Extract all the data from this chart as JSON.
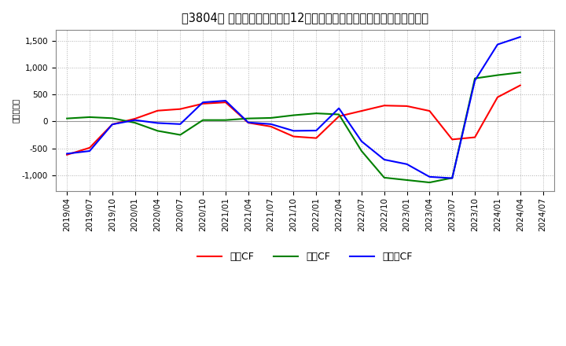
{
  "title": "［3804］ キャッシュフローの12か月移動合計の対前年同期増減額の推移",
  "ylabel": "（百万円）",
  "xlabels": [
    "2019/04",
    "2019/07",
    "2019/10",
    "2020/01",
    "2020/04",
    "2020/07",
    "2020/10",
    "2021/01",
    "2021/04",
    "2021/07",
    "2021/10",
    "2022/01",
    "2022/04",
    "2022/07",
    "2022/10",
    "2023/01",
    "2023/04",
    "2023/07",
    "2023/10",
    "2024/01",
    "2024/04",
    "2024/07"
  ],
  "operating_cf": [
    -620,
    -490,
    -55,
    50,
    200,
    230,
    330,
    355,
    -25,
    -95,
    -280,
    -310,
    95,
    195,
    295,
    285,
    195,
    -335,
    -295,
    450,
    670,
    null
  ],
  "investing_cf": [
    55,
    80,
    60,
    -25,
    -175,
    -250,
    25,
    25,
    55,
    65,
    115,
    150,
    130,
    -550,
    -1045,
    -1090,
    -1135,
    -1050,
    800,
    860,
    910,
    null
  ],
  "free_cf": [
    -600,
    -550,
    -55,
    25,
    -30,
    -50,
    355,
    385,
    -20,
    -50,
    -175,
    -170,
    245,
    -370,
    -710,
    -795,
    -1030,
    -1055,
    760,
    1430,
    1570,
    null
  ],
  "operating_color": "#ff0000",
  "investing_color": "#008000",
  "free_color": "#0000ff",
  "ylim": [
    -1300,
    1700
  ],
  "yticks": [
    -1000,
    -500,
    0,
    500,
    1000,
    1500
  ],
  "bg_color": "#ffffff",
  "plot_bg_color": "#ffffff",
  "grid_color": "#b0b0b0",
  "title_fontsize": 10.5,
  "axis_fontsize": 7.5,
  "legend_fontsize": 9
}
